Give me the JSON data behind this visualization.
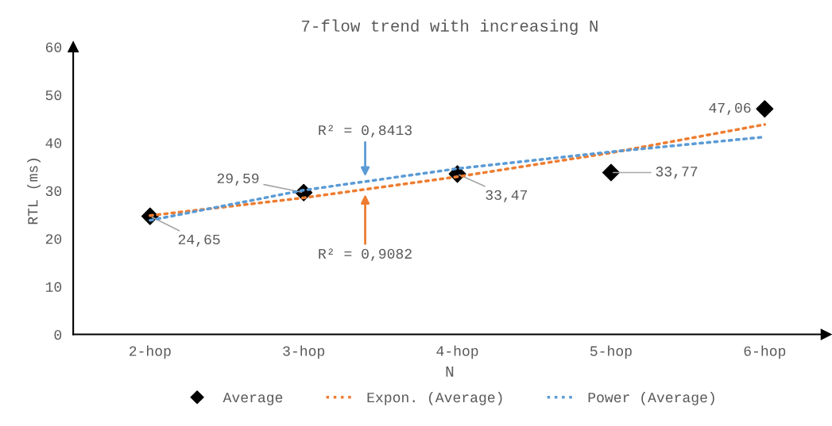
{
  "chart_data": {
    "type": "scatter",
    "title": "7-flow trend with increasing N",
    "xlabel": "N",
    "ylabel": "RTL (ms)",
    "categories": [
      "2-hop",
      "3-hop",
      "4-hop",
      "5-hop",
      "6-hop"
    ],
    "series": [
      {
        "name": "Average",
        "color": "#000000",
        "marker": "diamond",
        "values": [
          24.65,
          29.59,
          33.47,
          33.77,
          47.06
        ],
        "value_labels": [
          "24,65",
          "29,59",
          "33,47",
          "33,77",
          "47,06"
        ]
      },
      {
        "name": "Expon. (Average)",
        "type": "line",
        "color": "#ed7d31",
        "line_style": "dotted",
        "values": [
          24.8,
          28.5,
          32.9,
          37.9,
          43.8
        ]
      },
      {
        "name": "Power (Average)",
        "type": "line",
        "color": "#5b9bd5",
        "line_style": "dotted",
        "values": [
          23.8,
          30.1,
          34.6,
          38.1,
          41.2
        ]
      }
    ],
    "annotations": [
      "R² = 0,8413",
      "R² = 0,9082"
    ],
    "ylim": [
      0,
      60
    ],
    "yticks": [
      0,
      10,
      20,
      30,
      40,
      50,
      60
    ],
    "grid": false,
    "legend": "bottom"
  }
}
